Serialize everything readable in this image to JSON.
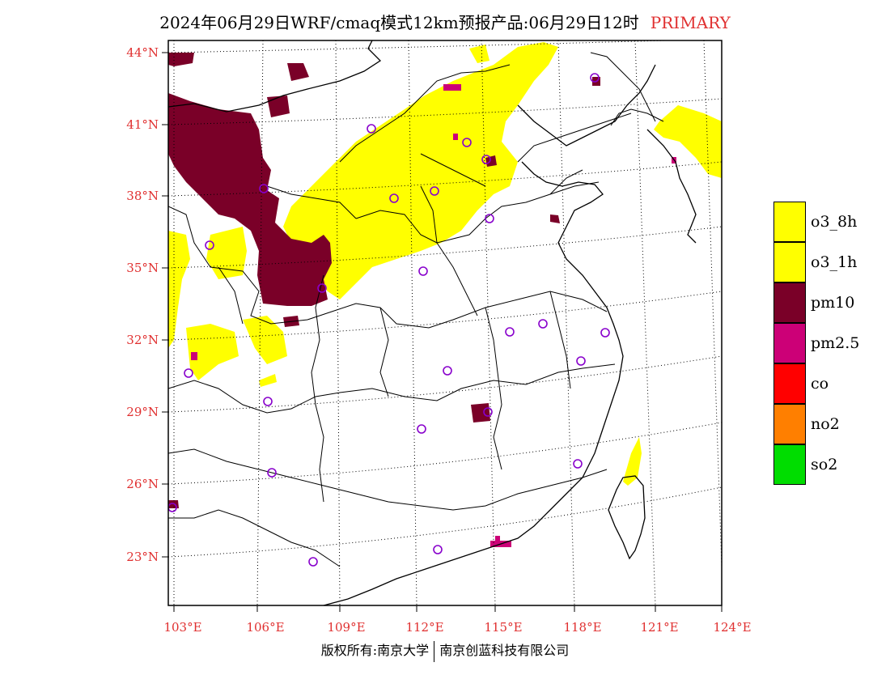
{
  "title": {
    "text": "2024年06月29日WRF/cmaq模式12km预报产品:06月29日12时",
    "tag": "PRIMARY",
    "tag_color": "#e03030"
  },
  "map": {
    "lat_labels": [
      "44°N",
      "41°N",
      "38°N",
      "35°N",
      "32°N",
      "29°N",
      "26°N",
      "23°N"
    ],
    "lon_labels": [
      "103°E",
      "106°E",
      "109°E",
      "112°E",
      "115°E",
      "118°E",
      "121°E",
      "124°E"
    ],
    "label_color": "#e03030"
  },
  "legend": [
    {
      "label": "o3_8h",
      "color": "#ffff00"
    },
    {
      "label": "o3_1h",
      "color": "#ffff00"
    },
    {
      "label": "pm10",
      "color": "#7a0028"
    },
    {
      "label": "pm2.5",
      "color": "#cc0077"
    },
    {
      "label": "co",
      "color": "#ff0000"
    },
    {
      "label": "no2",
      "color": "#ff7f00"
    },
    {
      "label": "so2",
      "color": "#00dd00"
    }
  ],
  "footer": {
    "left": "版权所有:南京大学",
    "right": "南京创蓝科技有限公司"
  }
}
